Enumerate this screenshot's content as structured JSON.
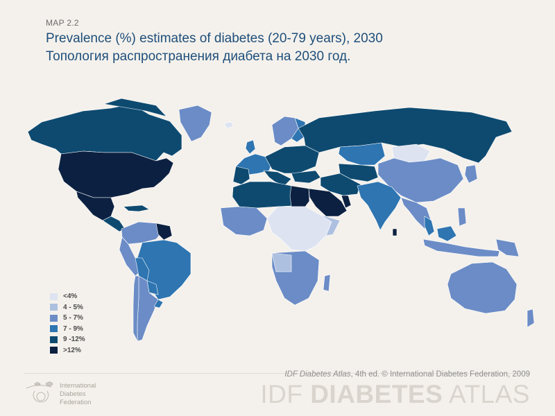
{
  "header": {
    "map_label": "MAP 2.2",
    "title_en": "Prevalence (%) estimates of diabetes (20-79 years), 2030",
    "title_ru": "Топология распространения диабета на 2030 год."
  },
  "legend": {
    "items": [
      {
        "label": "<4%",
        "color": "#dde3f1"
      },
      {
        "label": "4 - 5%",
        "color": "#aec0e0"
      },
      {
        "label": "5 - 7%",
        "color": "#6b8cc6"
      },
      {
        "label": "7 - 9%",
        "color": "#2e75b1"
      },
      {
        "label": "9 -12%",
        "color": "#0e4a70"
      },
      {
        "label": ">12%",
        "color": "#0c2141"
      }
    ]
  },
  "footer": {
    "credit_book": "IDF Diabetes Atlas",
    "credit_rest": ", 4th ed.  © International Diabetes Federation, 2009",
    "brand_prefix": "IDF ",
    "brand_bold": "DIABETES",
    "brand_suffix": " ATLAS",
    "org_line1": "International",
    "org_line2": "Diabetes",
    "org_line3": "Federation"
  },
  "colors": {
    "lt4": "#dde3f1",
    "c4_5": "#aec0e0",
    "c5_7": "#6b8cc6",
    "c7_9": "#2e75b1",
    "c9_12": "#0e4a70",
    "gt12": "#0c2141",
    "border": "#ffffff"
  }
}
